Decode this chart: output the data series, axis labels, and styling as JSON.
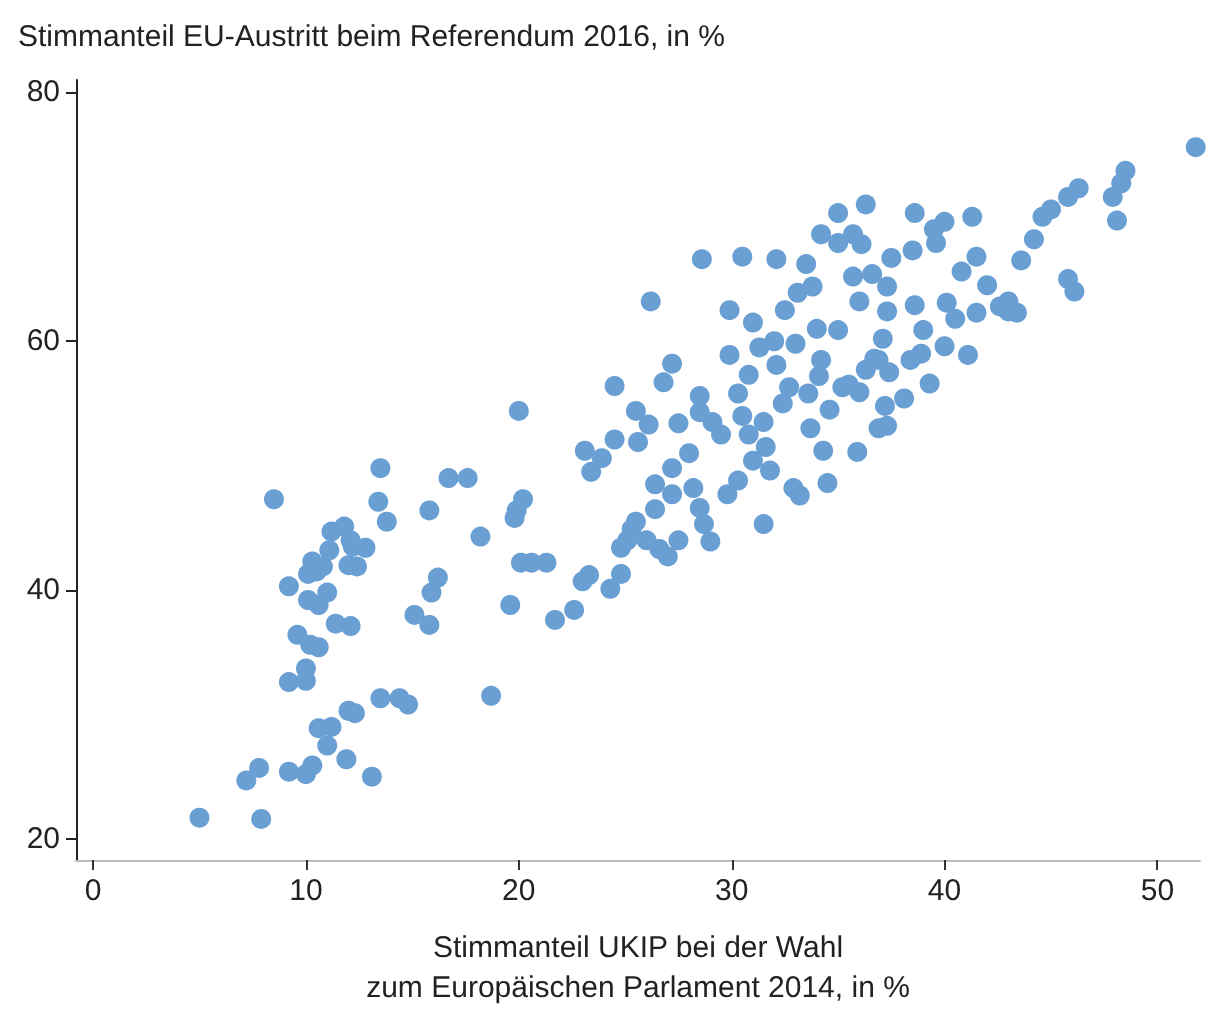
{
  "chart_data": {
    "type": "scatter",
    "title": "Stimmanteil EU-Austritt beim Referendum 2016, in %",
    "xlabel": "Stimmanteil UKIP bei der Wahl\nzum Europäischen Parlament 2014, in %",
    "marker": "circle",
    "grid": false,
    "xlim": [
      -0.8,
      52
    ],
    "xticks": [
      0,
      10,
      20,
      30,
      40,
      50
    ],
    "ylim": [
      18.3,
      81
    ],
    "yticks": [
      20,
      40,
      60,
      80
    ],
    "series": [
      {
        "color": "#6a9fd4",
        "x": [
          5,
          7.9,
          7.2,
          7.8,
          9.2,
          10,
          10.3,
          11,
          11.9,
          13.1,
          11.2,
          10.6,
          12,
          12.3,
          13.5,
          14.4,
          14.8,
          18.7,
          8.5,
          9.2,
          10,
          10,
          9.6,
          10.2,
          10.6,
          11.4,
          12.1,
          11,
          10.1,
          10.6,
          9.2,
          10.1,
          10.5,
          10.3,
          10.8,
          11.1,
          11.2,
          11.8,
          12.1,
          12.2,
          12.8,
          13.4,
          13.5,
          12,
          12.4,
          13.8,
          15.1,
          15.8,
          15.9,
          16.2,
          15.8,
          16.7,
          17.6,
          18.2,
          19.6,
          20.1,
          20.6,
          20,
          19.9,
          20.2,
          19.8,
          21.3,
          21.7,
          22.6,
          23,
          23.3,
          24.3,
          24.8,
          24.8,
          25.3,
          25.5,
          26,
          25.1,
          26.6,
          27,
          26.4,
          27.5,
          26.4,
          27.2,
          28.2,
          28.5,
          27.2,
          28.7,
          29,
          29.8,
          23.1,
          23.4,
          23.9,
          24.5,
          25.5,
          26.1,
          25.6,
          24.5,
          26.8,
          27.5,
          28.5,
          28.5,
          29.1,
          29.5,
          28,
          30.3,
          31,
          31.8,
          31.5,
          32.9,
          33.2,
          31.5,
          30.8,
          30.3,
          30.8,
          31.3,
          29.9,
          27.2,
          26.2,
          29.9,
          31,
          30.5,
          28.6,
          32.1,
          33.6,
          34.2,
          34,
          33.1,
          32.5,
          32,
          35,
          35.7,
          36,
          36.6,
          37.3,
          37.3,
          37.1,
          36.7,
          35.5,
          34.6,
          33.7,
          34.3,
          34.5,
          35.9,
          36.9,
          37.2,
          38.1,
          39.3,
          40,
          38.4,
          39,
          40.5,
          41.5,
          42.6,
          43,
          40.8,
          41.5,
          39.6,
          38.5,
          37.5,
          36.1,
          35.7,
          35,
          34.2,
          33.5,
          33.8,
          32.1,
          36.3,
          35,
          38.6,
          40,
          41.3,
          39.5,
          42,
          43.6,
          44.6,
          45,
          45.8,
          44.2,
          46.3,
          47.9,
          48.3,
          48.5,
          48.1,
          46.1,
          45.8,
          51.8,
          43,
          43.4,
          37.3,
          36.9,
          32.7,
          30.5,
          35.2,
          36.3,
          38.9,
          33,
          32.4,
          36,
          31.6,
          34.1,
          37.4,
          40.1,
          38.6,
          41.1
        ],
        "values": [
          21.7,
          21.6,
          24.7,
          25.7,
          25.4,
          25.2,
          25.9,
          27.5,
          26.4,
          25,
          29,
          28.9,
          30.3,
          30.1,
          31.3,
          31.3,
          30.8,
          31.5,
          47.3,
          32.6,
          32.7,
          33.7,
          36.4,
          35.6,
          35.4,
          37.3,
          37.1,
          39.8,
          39.2,
          38.8,
          40.3,
          41.3,
          41.5,
          42.3,
          41.9,
          43.2,
          44.7,
          45.1,
          44,
          43.5,
          43.4,
          47.1,
          49.8,
          42,
          41.9,
          45.5,
          38,
          37.2,
          39.8,
          41,
          46.4,
          49,
          49,
          44.3,
          38.8,
          42.2,
          42.2,
          54.4,
          46.4,
          47.3,
          45.8,
          42.2,
          37.6,
          38.4,
          40.7,
          41.2,
          40.1,
          41.3,
          43.4,
          44.9,
          45.5,
          44,
          44,
          43.3,
          42.7,
          46.5,
          44,
          48.5,
          49.8,
          48.2,
          46.6,
          47.7,
          45.3,
          43.9,
          47.7,
          51.2,
          49.5,
          50.6,
          52.1,
          54.4,
          53.3,
          51.9,
          56.4,
          56.7,
          53.4,
          55.6,
          54.3,
          53.5,
          52.5,
          51,
          48.8,
          50.4,
          49.6,
          45.3,
          48.2,
          47.6,
          53.5,
          52.5,
          55.8,
          57.3,
          59.5,
          58.9,
          58.2,
          63.2,
          62.5,
          61.5,
          66.8,
          66.6,
          58.1,
          55.8,
          58.5,
          61,
          63.9,
          62.5,
          60,
          60.9,
          65.2,
          63.2,
          65.4,
          64.4,
          62.4,
          60.2,
          58.6,
          56.5,
          54.5,
          53,
          51.2,
          48.6,
          51.1,
          53,
          54.8,
          55.4,
          56.6,
          59.6,
          58.5,
          60.9,
          61.8,
          62.3,
          62.8,
          63.2,
          65.6,
          66.8,
          67.9,
          67.3,
          66.7,
          67.8,
          68.6,
          67.9,
          68.6,
          66.2,
          64.4,
          66.6,
          71,
          70.3,
          70.3,
          69.6,
          70,
          69,
          64.5,
          66.5,
          70,
          70.6,
          71.6,
          68.2,
          72.3,
          71.6,
          72.7,
          73.7,
          69.7,
          64,
          65,
          75.6,
          62.4,
          62.3,
          53.2,
          58.5,
          56.3,
          54,
          56.3,
          57.7,
          59,
          59.8,
          55,
          55.9,
          51.5,
          57.2,
          57.5,
          63.1,
          62.9,
          58.9
        ]
      }
    ]
  }
}
